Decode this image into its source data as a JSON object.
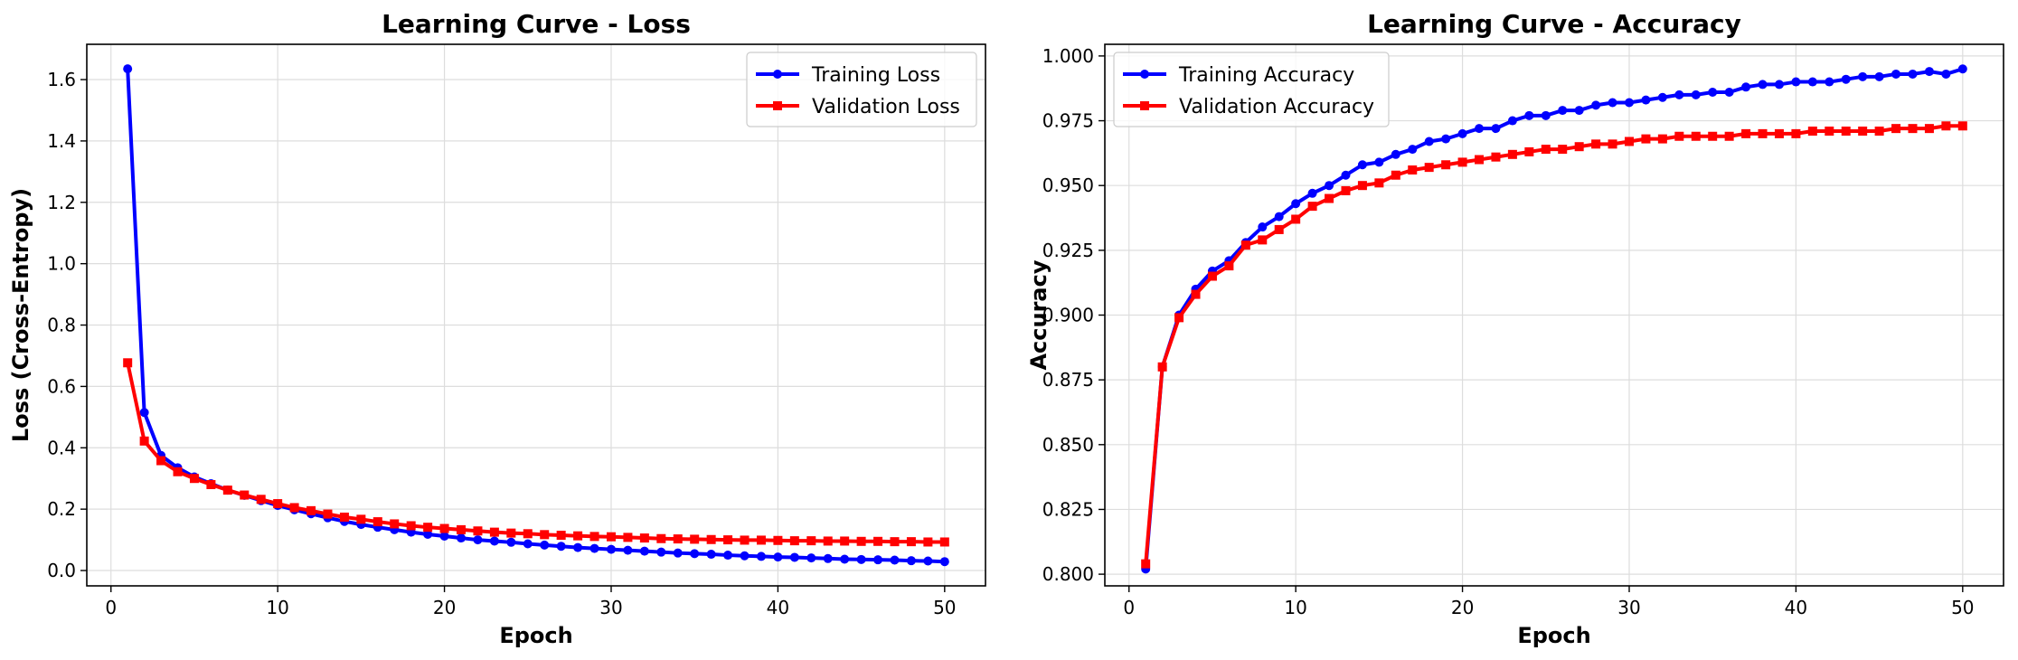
{
  "chart_data": [
    {
      "type": "line",
      "title": "Learning Curve - Loss",
      "xlabel": "Epoch",
      "ylabel": "Loss (Cross-Entropy)",
      "xlim": [
        -1.45,
        52.45
      ],
      "ylim": [
        -0.05,
        1.715
      ],
      "xticks": [
        0,
        10,
        20,
        30,
        40,
        50
      ],
      "yticks": [
        0.0,
        0.2,
        0.4,
        0.6,
        0.8,
        1.0,
        1.2,
        1.4,
        1.6
      ],
      "ytick_labels": [
        "0.0",
        "0.2",
        "0.4",
        "0.6",
        "0.8",
        "1.0",
        "1.2",
        "1.4",
        "1.6"
      ],
      "grid": true,
      "legend_position": "upper right",
      "x": [
        1,
        2,
        3,
        4,
        5,
        6,
        7,
        8,
        9,
        10,
        11,
        12,
        13,
        14,
        15,
        16,
        17,
        18,
        19,
        20,
        21,
        22,
        23,
        24,
        25,
        26,
        27,
        28,
        29,
        30,
        31,
        32,
        33,
        34,
        35,
        36,
        37,
        38,
        39,
        40,
        41,
        42,
        43,
        44,
        45,
        46,
        47,
        48,
        49,
        50
      ],
      "series": [
        {
          "name": "Training Loss",
          "color": "#0000ff",
          "marker": "circle",
          "values": [
            1.635,
            0.515,
            0.375,
            0.335,
            0.305,
            0.283,
            0.262,
            0.245,
            0.228,
            0.212,
            0.198,
            0.185,
            0.172,
            0.16,
            0.15,
            0.141,
            0.133,
            0.125,
            0.118,
            0.112,
            0.106,
            0.1,
            0.096,
            0.092,
            0.087,
            0.083,
            0.079,
            0.075,
            0.072,
            0.069,
            0.066,
            0.063,
            0.06,
            0.057,
            0.055,
            0.053,
            0.05,
            0.048,
            0.046,
            0.044,
            0.043,
            0.041,
            0.039,
            0.037,
            0.036,
            0.035,
            0.034,
            0.032,
            0.031,
            0.029
          ]
        },
        {
          "name": "Validation Loss",
          "color": "#ff0000",
          "marker": "square",
          "values": [
            0.677,
            0.422,
            0.358,
            0.322,
            0.3,
            0.28,
            0.262,
            0.246,
            0.232,
            0.218,
            0.205,
            0.195,
            0.184,
            0.174,
            0.167,
            0.159,
            0.152,
            0.146,
            0.141,
            0.137,
            0.133,
            0.129,
            0.125,
            0.122,
            0.12,
            0.117,
            0.115,
            0.113,
            0.111,
            0.11,
            0.108,
            0.106,
            0.104,
            0.103,
            0.102,
            0.101,
            0.1,
            0.099,
            0.099,
            0.098,
            0.097,
            0.097,
            0.096,
            0.096,
            0.095,
            0.095,
            0.094,
            0.094,
            0.093,
            0.093
          ]
        }
      ]
    },
    {
      "type": "line",
      "title": "Learning Curve - Accuracy",
      "xlabel": "Epoch",
      "ylabel": "Accuracy",
      "xlim": [
        -1.45,
        52.45
      ],
      "ylim": [
        0.7955,
        1.0045
      ],
      "xticks": [
        0,
        10,
        20,
        30,
        40,
        50
      ],
      "yticks": [
        0.8,
        0.825,
        0.85,
        0.875,
        0.9,
        0.925,
        0.95,
        0.975,
        1.0
      ],
      "ytick_labels": [
        "0.800",
        "0.825",
        "0.850",
        "0.875",
        "0.900",
        "0.925",
        "0.950",
        "0.975",
        "1.000"
      ],
      "grid": true,
      "legend_position": "upper left",
      "x": [
        1,
        2,
        3,
        4,
        5,
        6,
        7,
        8,
        9,
        10,
        11,
        12,
        13,
        14,
        15,
        16,
        17,
        18,
        19,
        20,
        21,
        22,
        23,
        24,
        25,
        26,
        27,
        28,
        29,
        30,
        31,
        32,
        33,
        34,
        35,
        36,
        37,
        38,
        39,
        40,
        41,
        42,
        43,
        44,
        45,
        46,
        47,
        48,
        49,
        50
      ],
      "series": [
        {
          "name": "Training Accuracy",
          "color": "#0000ff",
          "marker": "circle",
          "values": [
            0.802,
            0.88,
            0.9,
            0.91,
            0.917,
            0.921,
            0.928,
            0.934,
            0.938,
            0.943,
            0.947,
            0.95,
            0.954,
            0.958,
            0.959,
            0.962,
            0.964,
            0.967,
            0.968,
            0.97,
            0.972,
            0.972,
            0.975,
            0.977,
            0.977,
            0.979,
            0.979,
            0.981,
            0.982,
            0.982,
            0.983,
            0.984,
            0.985,
            0.985,
            0.986,
            0.986,
            0.988,
            0.989,
            0.989,
            0.99,
            0.99,
            0.99,
            0.991,
            0.992,
            0.992,
            0.993,
            0.993,
            0.994,
            0.993,
            0.995
          ]
        },
        {
          "name": "Validation Accuracy",
          "color": "#ff0000",
          "marker": "square",
          "values": [
            0.804,
            0.88,
            0.899,
            0.908,
            0.915,
            0.919,
            0.927,
            0.929,
            0.933,
            0.937,
            0.942,
            0.945,
            0.948,
            0.95,
            0.951,
            0.954,
            0.956,
            0.957,
            0.958,
            0.959,
            0.96,
            0.961,
            0.962,
            0.963,
            0.964,
            0.964,
            0.965,
            0.966,
            0.966,
            0.967,
            0.968,
            0.968,
            0.969,
            0.969,
            0.969,
            0.969,
            0.97,
            0.97,
            0.97,
            0.97,
            0.971,
            0.971,
            0.971,
            0.971,
            0.971,
            0.972,
            0.972,
            0.972,
            0.973,
            0.973
          ]
        }
      ]
    }
  ]
}
